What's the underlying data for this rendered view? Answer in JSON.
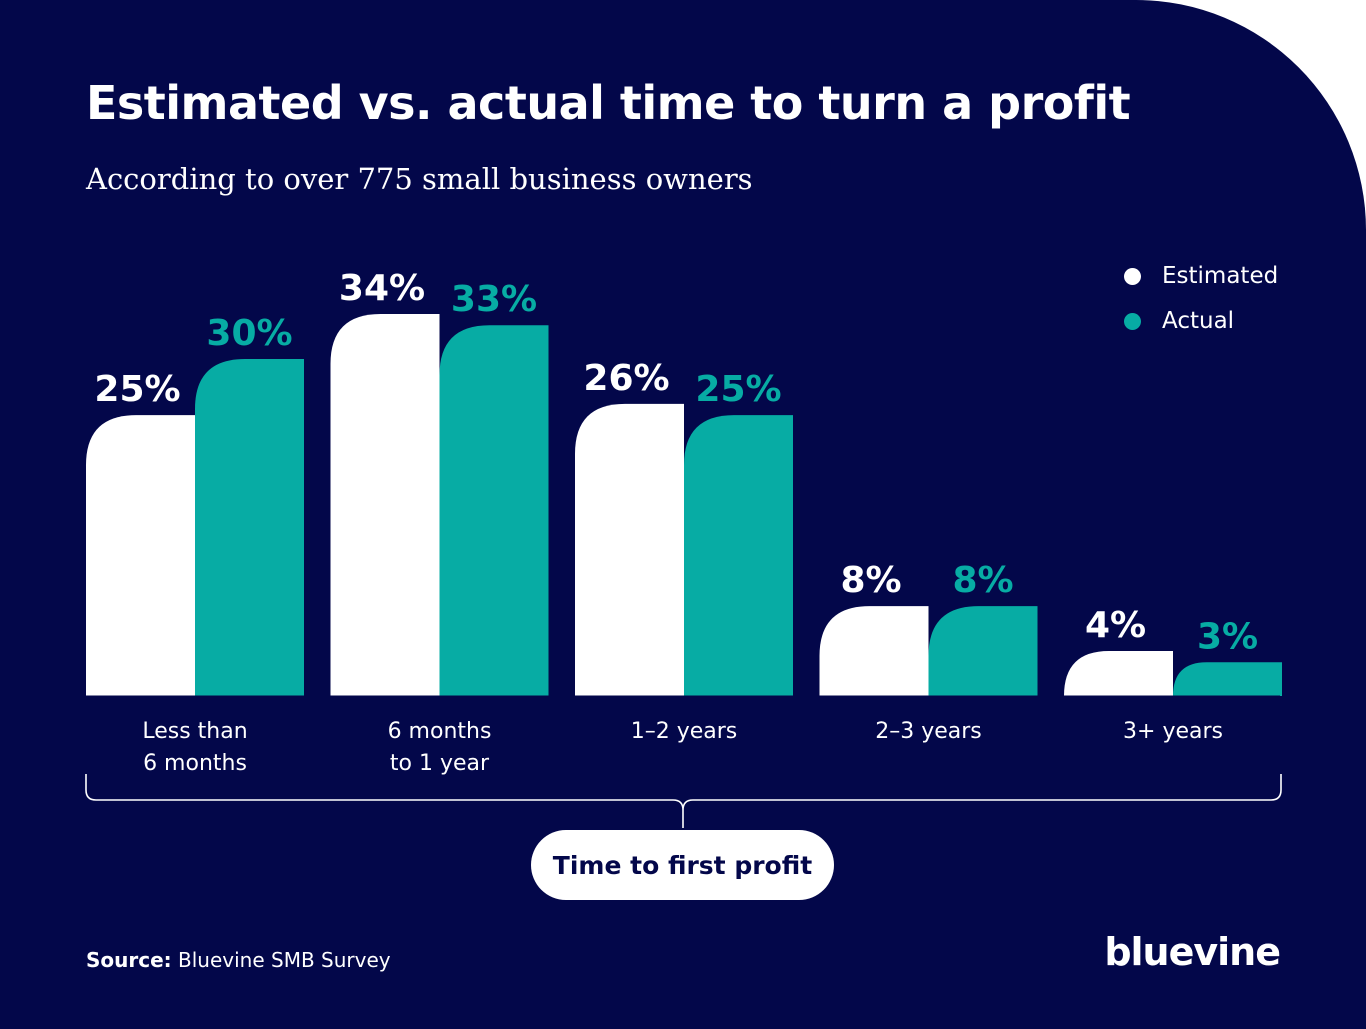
{
  "title": "Estimated vs. actual time to turn a profit",
  "subtitle": "According to over 775 small business owners",
  "legend": [
    {
      "label": "Estimated",
      "color": "#ffffff"
    },
    {
      "label": "Actual",
      "color": "#07aca4"
    }
  ],
  "axis_label": "Time to first profit",
  "source": {
    "prefix": "Source:",
    "text": " Bluevine SMB Survey"
  },
  "logo": "bluevine",
  "colors": {
    "background": "#03074a",
    "estimated": "#ffffff",
    "actual": "#07aca4"
  },
  "chart_data": {
    "type": "bar",
    "categories": [
      [
        "Less than",
        "6 months"
      ],
      [
        "6 months",
        "to 1 year"
      ],
      [
        "1–2 years"
      ],
      [
        "2–3 years"
      ],
      [
        "3+ years"
      ]
    ],
    "series": [
      {
        "name": "Estimated",
        "values": [
          25,
          34,
          26,
          8,
          4
        ],
        "labels": [
          "25%",
          "34%",
          "26%",
          "8%",
          "4%"
        ]
      },
      {
        "name": "Actual",
        "values": [
          30,
          33,
          25,
          8,
          3
        ],
        "labels": [
          "30%",
          "33%",
          "25%",
          "8%",
          "3%"
        ]
      }
    ],
    "xlabel": "Time to first profit",
    "ylabel": "",
    "ylim": [
      0,
      34
    ],
    "grid": false,
    "legend_position": "top-right"
  }
}
